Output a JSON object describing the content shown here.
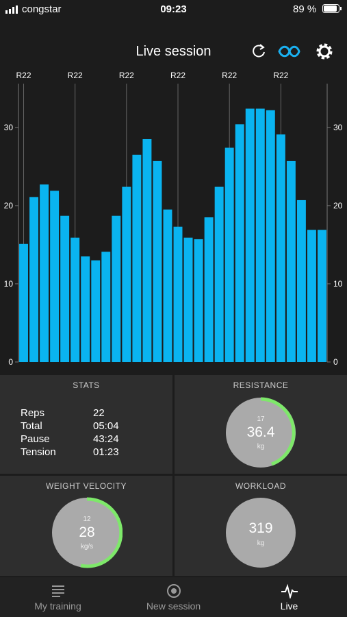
{
  "status_bar": {
    "carrier": "congstar",
    "time": "09:23",
    "battery": "89 %"
  },
  "header": {
    "title": "Live session"
  },
  "chart_data": {
    "type": "bar",
    "categories": [
      "R22",
      null,
      null,
      null,
      null,
      "R22",
      null,
      null,
      null,
      null,
      "R22",
      null,
      null,
      null,
      null,
      "R22",
      null,
      null,
      null,
      null,
      "R22",
      null,
      null,
      null,
      null,
      "R22",
      null,
      null,
      null,
      null
    ],
    "values": [
      15.1,
      21.1,
      22.7,
      21.9,
      18.7,
      15.9,
      13.5,
      13.0,
      14.1,
      18.7,
      22.4,
      26.5,
      28.5,
      25.7,
      19.5,
      17.3,
      15.9,
      15.7,
      18.5,
      22.4,
      27.4,
      30.4,
      32.4,
      32.4,
      32.2,
      29.1,
      25.7,
      20.7,
      16.9,
      16.9
    ],
    "color": "#0ab4f0",
    "ylim": [
      0,
      35.6
    ],
    "yticks": [
      0,
      10,
      20,
      30
    ],
    "grid": true
  },
  "stats": {
    "title": "STATS",
    "rows": [
      [
        "Reps",
        "22"
      ],
      [
        "Total",
        "05:04"
      ],
      [
        "Pause",
        "43:24"
      ],
      [
        "Tension",
        "01:23"
      ]
    ]
  },
  "resistance": {
    "title": "RESISTANCE",
    "small": "17",
    "value": "36.4",
    "unit": "kg"
  },
  "velocity": {
    "title": "WEIGHT VELOCITY",
    "small": "12",
    "value": "28",
    "unit": "kg/s"
  },
  "workload": {
    "title": "WORKLOAD",
    "value": "319",
    "unit": "kg"
  },
  "tabs": [
    "My training",
    "New session",
    "Live"
  ]
}
